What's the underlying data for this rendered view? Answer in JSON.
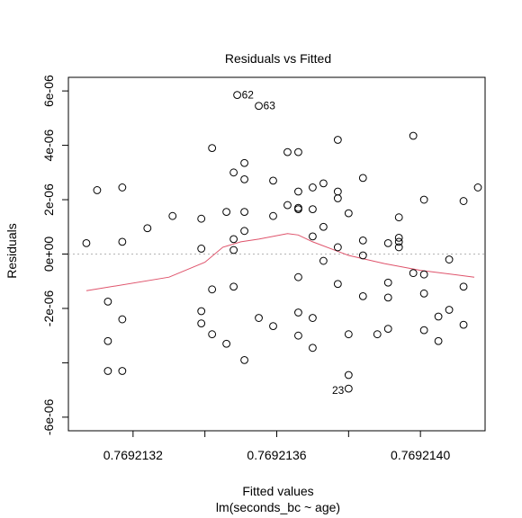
{
  "chart_data": {
    "type": "scatter",
    "title": "Residuals vs Fitted",
    "xlabel": "Fitted values",
    "sublabel": "lm(seconds_bc ~ age)",
    "ylabel": "Residuals",
    "xlim": [
      0.76921302,
      0.76921418
    ],
    "ylim": [
      -6.5e-06,
      6.5e-06
    ],
    "x_ticks": [
      {
        "value": 0.7692132,
        "label": "0.7692132"
      },
      {
        "value": 0.7692134,
        "label": ""
      },
      {
        "value": 0.7692136,
        "label": "0.7692136"
      },
      {
        "value": 0.7692138,
        "label": ""
      },
      {
        "value": 0.769214,
        "label": "0.7692140"
      }
    ],
    "y_ticks": [
      {
        "value": -6e-06,
        "label": "-6e-06"
      },
      {
        "value": -4e-06,
        "label": ""
      },
      {
        "value": -2e-06,
        "label": "-2e-06"
      },
      {
        "value": 0,
        "label": "0e+00"
      },
      {
        "value": 2e-06,
        "label": "2e-06"
      },
      {
        "value": 4e-06,
        "label": "4e-06"
      },
      {
        "value": 6e-06,
        "label": "6e-06"
      }
    ],
    "reference_line": {
      "y": 0,
      "color": "#b3b3b3",
      "style": "dotted"
    },
    "smooth_color": "#df536b",
    "point_color": "#000000",
    "smooth": [
      [
        0.76921307,
        -1.35e-06
      ],
      [
        0.7692133,
        -8.5e-07
      ],
      [
        0.7692134,
        -3e-07
      ],
      [
        0.76921345,
        2.5e-07
      ],
      [
        0.7692135,
        4.5e-07
      ],
      [
        0.76921355,
        5.5e-07
      ],
      [
        0.76921363,
        7.5e-07
      ],
      [
        0.76921366,
        7e-07
      ],
      [
        0.7692137,
        4.5e-07
      ],
      [
        0.7692138,
        -5e-08
      ],
      [
        0.7692139,
        -3.5e-07
      ],
      [
        0.769214,
        -6e-07
      ],
      [
        0.76921415,
        -8.5e-07
      ]
    ],
    "points": [
      [
        0.76921307,
        4e-07
      ],
      [
        0.7692131,
        2.35e-06
      ],
      [
        0.76921313,
        -1.75e-06
      ],
      [
        0.76921313,
        -3.2e-06
      ],
      [
        0.76921313,
        -4.3e-06
      ],
      [
        0.76921317,
        2.45e-06
      ],
      [
        0.76921317,
        4.5e-07
      ],
      [
        0.76921317,
        -2.4e-06
      ],
      [
        0.76921317,
        -4.3e-06
      ],
      [
        0.76921324,
        9.5e-07
      ],
      [
        0.76921331,
        1.4e-06
      ],
      [
        0.76921339,
        1.3e-06
      ],
      [
        0.76921339,
        2e-07
      ],
      [
        0.76921339,
        -2.1e-06
      ],
      [
        0.76921339,
        -2.55e-06
      ],
      [
        0.76921342,
        3.9e-06
      ],
      [
        0.76921342,
        -1.3e-06
      ],
      [
        0.76921342,
        -2.95e-06
      ],
      [
        0.76921346,
        1.55e-06
      ],
      [
        0.76921346,
        -3.3e-06
      ],
      [
        0.76921348,
        3e-06
      ],
      [
        0.76921348,
        5.5e-07
      ],
      [
        0.76921348,
        1.5e-07
      ],
      [
        0.76921348,
        -1.2e-06
      ],
      [
        0.76921349,
        5.85e-06
      ],
      [
        0.76921351,
        3.35e-06
      ],
      [
        0.76921351,
        2.75e-06
      ],
      [
        0.76921351,
        1.55e-06
      ],
      [
        0.76921351,
        8.5e-07
      ],
      [
        0.76921351,
        -3.9e-06
      ],
      [
        0.76921355,
        5.45e-06
      ],
      [
        0.76921355,
        -2.35e-06
      ],
      [
        0.76921359,
        2.7e-06
      ],
      [
        0.76921359,
        1.4e-06
      ],
      [
        0.76921359,
        -2.65e-06
      ],
      [
        0.76921363,
        3.75e-06
      ],
      [
        0.76921363,
        1.8e-06
      ],
      [
        0.76921366,
        3.75e-06
      ],
      [
        0.76921366,
        2.3e-06
      ],
      [
        0.76921366,
        1.7e-06
      ],
      [
        0.76921366,
        1.65e-06
      ],
      [
        0.76921366,
        -8.5e-07
      ],
      [
        0.76921366,
        -2.15e-06
      ],
      [
        0.76921366,
        -3e-06
      ],
      [
        0.7692137,
        2.45e-06
      ],
      [
        0.7692137,
        1.65e-06
      ],
      [
        0.7692137,
        6.5e-07
      ],
      [
        0.7692137,
        -2.35e-06
      ],
      [
        0.7692137,
        -3.45e-06
      ],
      [
        0.76921373,
        2.6e-06
      ],
      [
        0.76921373,
        1e-06
      ],
      [
        0.76921373,
        -2.5e-07
      ],
      [
        0.76921377,
        4.2e-06
      ],
      [
        0.76921377,
        2.3e-06
      ],
      [
        0.76921377,
        2.05e-06
      ],
      [
        0.76921377,
        2.5e-07
      ],
      [
        0.76921377,
        -1.1e-06
      ],
      [
        0.7692138,
        1.5e-06
      ],
      [
        0.7692138,
        -2.95e-06
      ],
      [
        0.7692138,
        -4.45e-06
      ],
      [
        0.7692138,
        -4.95e-06
      ],
      [
        0.76921384,
        2.8e-06
      ],
      [
        0.76921384,
        5e-07
      ],
      [
        0.76921384,
        -5e-08
      ],
      [
        0.76921384,
        -1.55e-06
      ],
      [
        0.76921388,
        -2.95e-06
      ],
      [
        0.76921391,
        4e-07
      ],
      [
        0.76921391,
        -1.05e-06
      ],
      [
        0.76921391,
        -1.6e-06
      ],
      [
        0.76921391,
        -2.75e-06
      ],
      [
        0.76921394,
        1.35e-06
      ],
      [
        0.76921394,
        6e-07
      ],
      [
        0.76921394,
        4.5e-07
      ],
      [
        0.76921394,
        2.5e-07
      ],
      [
        0.76921398,
        4.35e-06
      ],
      [
        0.76921398,
        -7e-07
      ],
      [
        0.76921401,
        2e-06
      ],
      [
        0.76921401,
        -7.5e-07
      ],
      [
        0.76921401,
        -1.45e-06
      ],
      [
        0.76921401,
        -2.8e-06
      ],
      [
        0.76921405,
        -2.3e-06
      ],
      [
        0.76921405,
        -3.2e-06
      ],
      [
        0.76921408,
        -2e-07
      ],
      [
        0.76921408,
        -2.05e-06
      ],
      [
        0.76921412,
        1.95e-06
      ],
      [
        0.76921412,
        -1.2e-06
      ],
      [
        0.76921412,
        -2.6e-06
      ],
      [
        0.76921416,
        2.45e-06
      ]
    ],
    "labeled_points": [
      {
        "label": "62",
        "x": 0.76921349,
        "y": 5.85e-06
      },
      {
        "label": "63",
        "x": 0.76921355,
        "y": 5.45e-06
      },
      {
        "label": "23",
        "x": 0.7692138,
        "y": -4.95e-06
      }
    ]
  }
}
